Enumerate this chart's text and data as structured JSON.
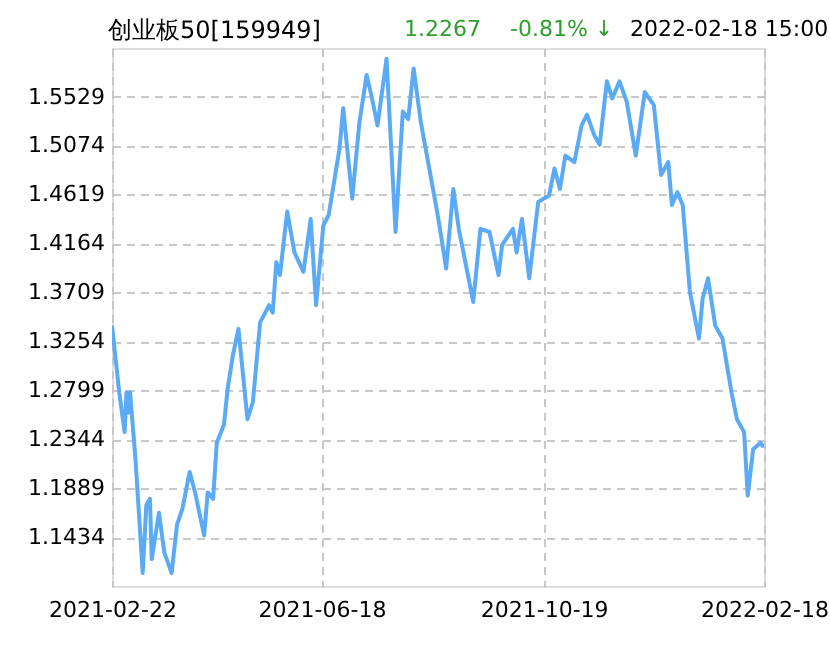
{
  "chart_data": {
    "type": "line",
    "title": "创业板50[159949]",
    "annotations": [
      "1.2267",
      "-0.81% ↓",
      "2022-02-18 15:00"
    ],
    "x": [
      "2021-02-22",
      "2021-02-26",
      "2021-03-01",
      "2021-03-02",
      "2021-03-03",
      "2021-03-04",
      "2021-03-07",
      "2021-03-11",
      "2021-03-13",
      "2021-03-15",
      "2021-03-16",
      "2021-03-20",
      "2021-03-23",
      "2021-03-27",
      "2021-03-30",
      "2021-04-02",
      "2021-04-06",
      "2021-04-09",
      "2021-04-14",
      "2021-04-16",
      "2021-04-19",
      "2021-04-21",
      "2021-04-25",
      "2021-04-27",
      "2021-04-30",
      "2021-05-03",
      "2021-05-08",
      "2021-05-11",
      "2021-05-15",
      "2021-05-20",
      "2021-05-22",
      "2021-05-24",
      "2021-05-26",
      "2021-05-30",
      "2021-06-03",
      "2021-06-08",
      "2021-06-12",
      "2021-06-15",
      "2021-06-19",
      "2021-06-22",
      "2021-06-28",
      "2021-06-30",
      "2021-07-05",
      "2021-07-09",
      "2021-07-13",
      "2021-07-16",
      "2021-07-19",
      "2021-07-24",
      "2021-07-29",
      "2021-08-02",
      "2021-08-05",
      "2021-08-08",
      "2021-08-12",
      "2021-08-21",
      "2021-08-24",
      "2021-08-26",
      "2021-08-30",
      "2021-09-02",
      "2021-09-10",
      "2021-09-14",
      "2021-09-19",
      "2021-09-24",
      "2021-09-26",
      "2021-10-02",
      "2021-10-04",
      "2021-10-07",
      "2021-10-11",
      "2021-10-16",
      "2021-10-22",
      "2021-10-25",
      "2021-10-28",
      "2021-10-31",
      "2021-11-05",
      "2021-11-09",
      "2021-11-12",
      "2021-11-16",
      "2021-11-19",
      "2021-11-23",
      "2021-11-26",
      "2021-11-30",
      "2021-12-04",
      "2021-12-09",
      "2021-12-14",
      "2021-12-19",
      "2021-12-23",
      "2021-12-27",
      "2021-12-29",
      "2022-01-01",
      "2022-01-04",
      "2022-01-08",
      "2022-01-13",
      "2022-01-15",
      "2022-01-18",
      "2022-01-22",
      "2022-01-26",
      "2022-01-31",
      "2022-02-03",
      "2022-02-07",
      "2022-02-09",
      "2022-02-12",
      "2022-02-16",
      "2022-02-18"
    ],
    "series": [
      {
        "color": "#5aaaf5",
        "values": [
          1.34,
          1.278,
          1.241,
          1.278,
          1.259,
          1.278,
          1.216,
          1.11,
          1.173,
          1.179,
          1.123,
          1.166,
          1.129,
          1.11,
          1.155,
          1.17,
          1.204,
          1.185,
          1.145,
          1.185,
          1.179,
          1.231,
          1.248,
          1.281,
          1.313,
          1.337,
          1.253,
          1.269,
          1.343,
          1.359,
          1.352,
          1.399,
          1.387,
          1.446,
          1.408,
          1.39,
          1.439,
          1.359,
          1.433,
          1.443,
          1.505,
          1.542,
          1.458,
          1.529,
          1.573,
          1.551,
          1.526,
          1.588,
          1.427,
          1.539,
          1.532,
          1.579,
          1.529,
          1.446,
          1.415,
          1.393,
          1.467,
          1.43,
          1.362,
          1.43,
          1.427,
          1.387,
          1.415,
          1.43,
          1.408,
          1.439,
          1.384,
          1.455,
          1.461,
          1.486,
          1.467,
          1.498,
          1.492,
          1.526,
          1.536,
          1.517,
          1.508,
          1.567,
          1.551,
          1.567,
          1.548,
          1.498,
          1.557,
          1.545,
          1.48,
          1.492,
          1.452,
          1.464,
          1.452,
          1.371,
          1.328,
          1.365,
          1.384,
          1.34,
          1.328,
          1.278,
          1.253,
          1.241,
          1.182,
          1.225,
          1.231,
          1.227
        ]
      }
    ],
    "ylim": [
      1.098,
      1.598
    ],
    "yticks": [
      1.1434,
      1.1889,
      1.2344,
      1.2799,
      1.3254,
      1.3709,
      1.4164,
      1.4619,
      1.5074,
      1.5529
    ],
    "xlim": [
      "2021-02-22",
      "2022-02-18"
    ],
    "xticks": [
      "2021-02-22",
      "2021-06-18",
      "2021-10-19",
      "2022-02-18"
    ],
    "grid": true,
    "line_style": "solid",
    "marker": "none"
  }
}
